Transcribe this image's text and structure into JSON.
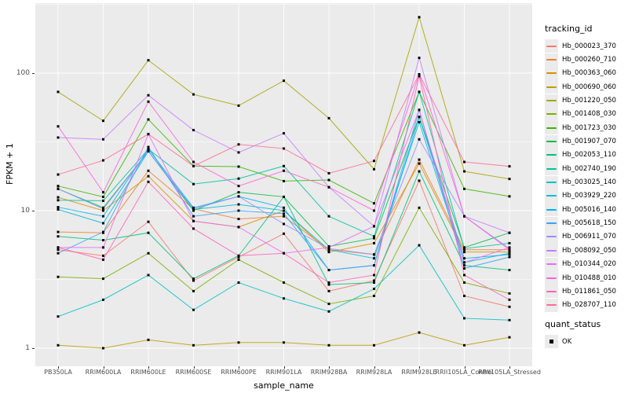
{
  "chart_data": {
    "type": "line",
    "title": "",
    "xlabel": "sample_name",
    "ylabel": "FPKM + 1",
    "y_scale": "log10",
    "y_ticks": [
      1,
      10,
      100
    ],
    "y_minor_ticks": [
      3.1623,
      31.623,
      316.23
    ],
    "ylim": [
      0.95,
      310
    ],
    "grid": "white-on-gray",
    "panel_bg": "#EBEBEB",
    "point_marker": "small-black-square",
    "legend_position": "right",
    "legend_titles": {
      "tracking": "tracking_id",
      "quant": "quant_status"
    },
    "quant_status_value": "OK",
    "categories": [
      "PB350LA",
      "RRIM600LA",
      "RRIM600LE",
      "RRIM600SE",
      "RRIM600PE",
      "RRIM901LA",
      "RRIM928BA",
      "RRIM928LA",
      "RRIM928LE",
      "RRII105LA_Control",
      "RRII105LA_Stressed"
    ],
    "series": [
      {
        "name": "Hb_000023_370",
        "color": "#F8766D",
        "values": [
          5.2,
          4.7,
          8.3,
          3.1,
          4.6,
          6.8,
          2.6,
          3.1,
          16.5,
          2.4,
          2.0
        ]
      },
      {
        "name": "Hb_000260_710",
        "color": "#EA8331",
        "values": [
          7.0,
          6.9,
          19.5,
          10.3,
          8.7,
          9.1,
          5.2,
          4.8,
          23.5,
          5.2,
          5.2
        ]
      },
      {
        "name": "Hb_000363_060",
        "color": "#D89000",
        "values": [
          12.5,
          10.0,
          17.8,
          8.4,
          7.6,
          10.0,
          5.0,
          5.8,
          22.0,
          5.0,
          5.0
        ]
      },
      {
        "name": "Hb_000690_060",
        "color": "#C09B00",
        "values": [
          1.05,
          1.0,
          1.15,
          1.05,
          1.1,
          1.1,
          1.05,
          1.05,
          1.3,
          1.05,
          1.2
        ]
      },
      {
        "name": "Hb_001220_050",
        "color": "#A3A500",
        "values": [
          73,
          45,
          124,
          70,
          58,
          88,
          47,
          20,
          255,
          19.3,
          17
        ]
      },
      {
        "name": "Hb_001408_030",
        "color": "#7CAE00",
        "values": [
          3.3,
          3.2,
          4.9,
          2.6,
          4.4,
          3.0,
          2.1,
          2.4,
          10.5,
          3.0,
          2.5
        ]
      },
      {
        "name": "Hb_001723_030",
        "color": "#39B600",
        "values": [
          15.1,
          12.6,
          46,
          21.1,
          20.9,
          16.4,
          16.7,
          11.3,
          73,
          14.4,
          12.7
        ]
      },
      {
        "name": "Hb_001907_070",
        "color": "#00BB4E",
        "values": [
          14.4,
          10.5,
          27,
          10.0,
          13.6,
          12.6,
          5.5,
          6.3,
          48,
          5.4,
          6.9
        ]
      },
      {
        "name": "Hb_002053_110",
        "color": "#00BF7D",
        "values": [
          6.5,
          6.1,
          6.9,
          3.2,
          4.7,
          12.6,
          2.9,
          3.0,
          19.3,
          4.0,
          3.7
        ]
      },
      {
        "name": "Hb_002740_190",
        "color": "#00C1A3",
        "values": [
          11.9,
          11.8,
          28,
          15.6,
          17.1,
          21.1,
          9.1,
          6.5,
          73,
          5.3,
          5.8
        ]
      },
      {
        "name": "Hb_003025_140",
        "color": "#00BFC4",
        "values": [
          1.7,
          2.25,
          3.4,
          1.9,
          3.0,
          2.3,
          1.85,
          2.7,
          5.6,
          1.65,
          1.6
        ]
      },
      {
        "name": "Hb_003929_220",
        "color": "#00BBDB",
        "values": [
          10.2,
          8.1,
          27,
          10.2,
          11.1,
          10.0,
          5.2,
          4.5,
          44,
          4.2,
          4.9
        ]
      },
      {
        "name": "Hb_005016_140",
        "color": "#00B0F6",
        "values": [
          10.6,
          9.1,
          28,
          10.5,
          12.7,
          10.5,
          3.7,
          4.0,
          48,
          4.5,
          4.8
        ]
      },
      {
        "name": "Hb_005618_150",
        "color": "#35A2FF",
        "values": [
          4.9,
          7.0,
          29,
          9.1,
          10.0,
          9.5,
          3.7,
          4.0,
          54,
          3.8,
          4.6
        ]
      },
      {
        "name": "Hb_006911_070",
        "color": "#9590FF",
        "values": [
          14.4,
          10.3,
          27,
          10.3,
          12.7,
          8.0,
          5.3,
          4.8,
          33,
          9.1,
          5.3
        ]
      },
      {
        "name": "Hb_008092_050",
        "color": "#C77CFF",
        "values": [
          34,
          33,
          69,
          38.5,
          26.5,
          36.5,
          14.8,
          7.7,
          129,
          9.1,
          6.9
        ]
      },
      {
        "name": "Hb_010344_020",
        "color": "#E76BF3",
        "values": [
          5.4,
          5.4,
          36,
          8.4,
          7.6,
          4.9,
          5.4,
          7.7,
          54,
          4.2,
          5.4
        ]
      },
      {
        "name": "Hb_010488_010",
        "color": "#FA62DB",
        "values": [
          41,
          13.6,
          62,
          22.6,
          15.1,
          19.5,
          14.8,
          10.0,
          98,
          9.1,
          5.2
        ]
      },
      {
        "name": "Hb_011861_050",
        "color": "#FF62BC",
        "values": [
          5.4,
          4.4,
          16.2,
          7.4,
          4.7,
          4.9,
          3.0,
          3.4,
          95,
          3.4,
          2.25
        ]
      },
      {
        "name": "Hb_028707_110",
        "color": "#FF6A98",
        "values": [
          18.3,
          23.2,
          36,
          21.1,
          30.3,
          28.3,
          18.7,
          23,
          98,
          22.6,
          21
        ]
      }
    ]
  }
}
